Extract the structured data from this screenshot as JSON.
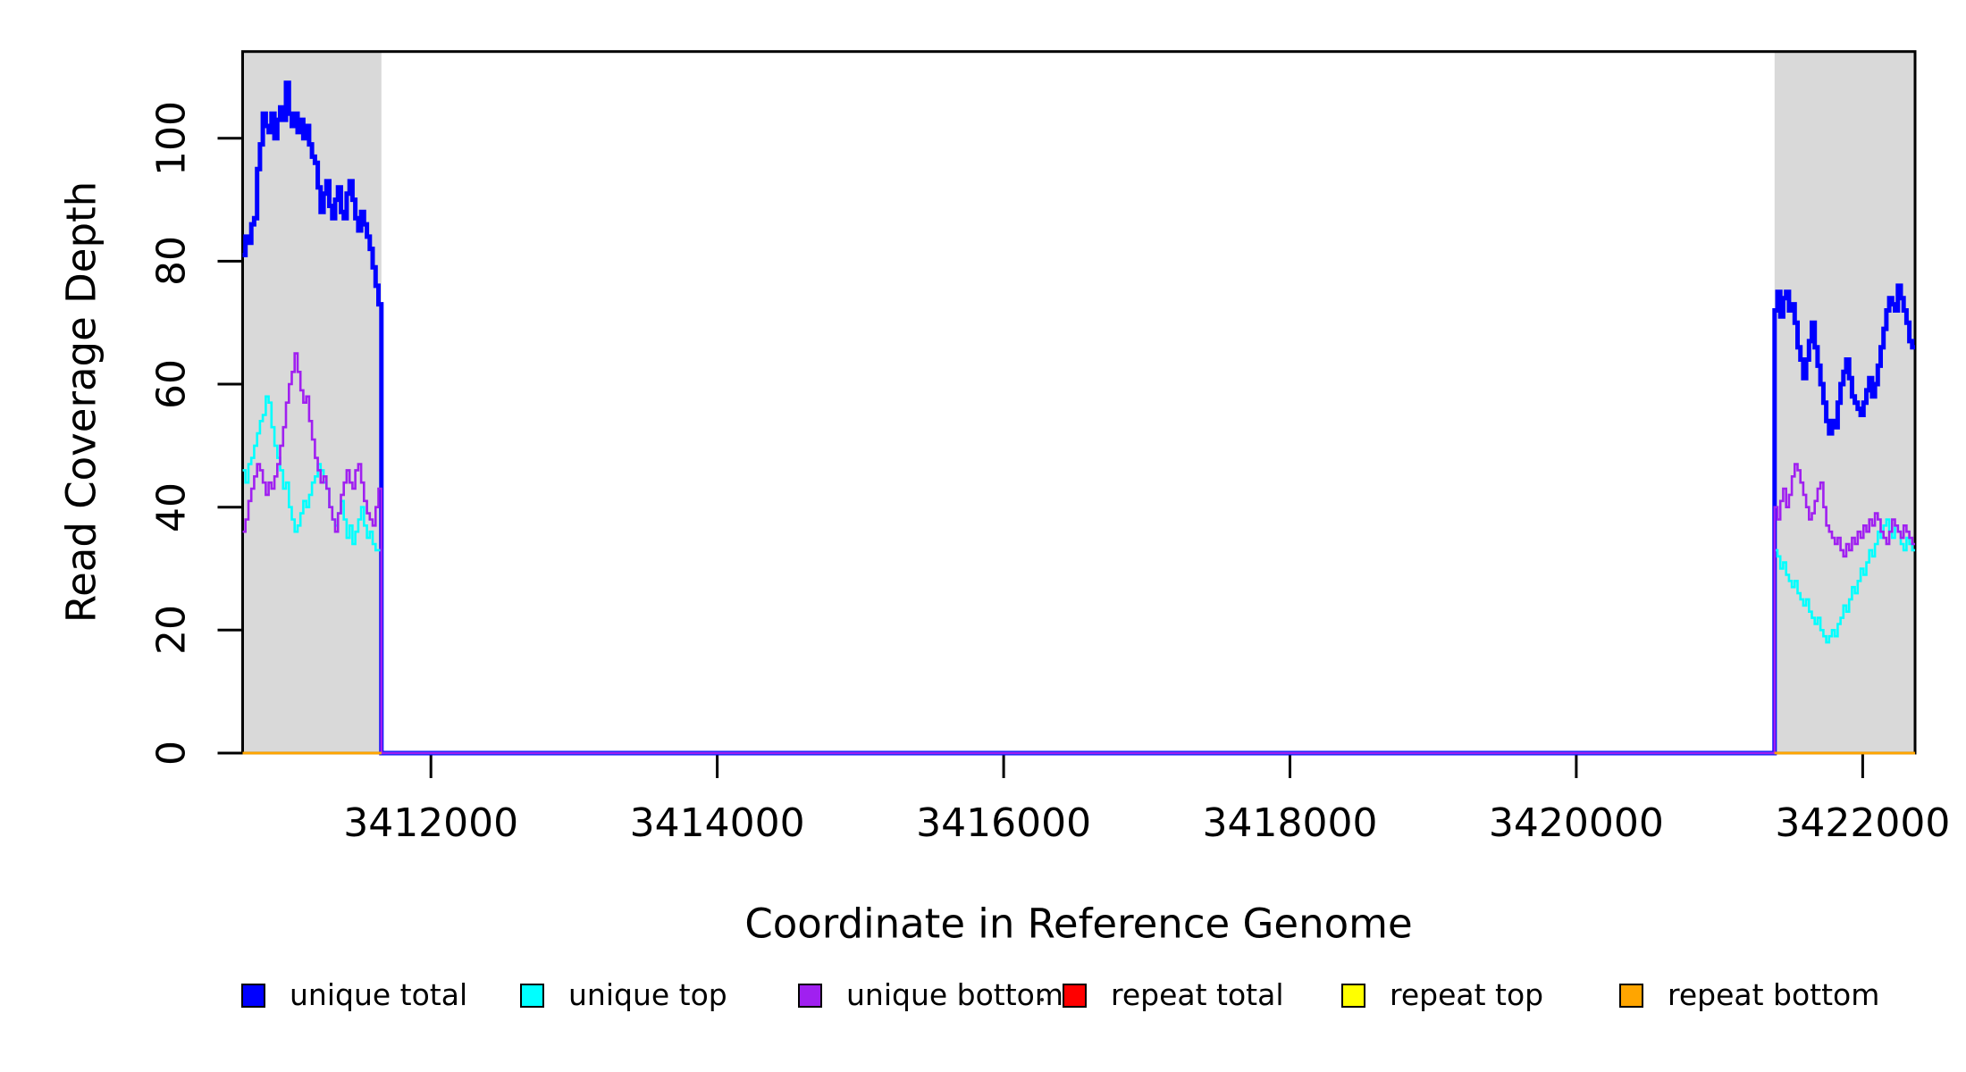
{
  "chart_data": {
    "type": "line",
    "line_style": "step",
    "title": "",
    "xlabel": "Coordinate in Reference Genome",
    "ylabel": "Read Coverage Depth",
    "xlim": [
      3410685,
      3422366
    ],
    "ylim": [
      0,
      114.1
    ],
    "x_ticks": [
      3412000,
      3414000,
      3416000,
      3418000,
      3420000,
      3422000
    ],
    "y_ticks": [
      0,
      20,
      40,
      60,
      80,
      100
    ],
    "grid": false,
    "legend_position": "bottom",
    "background_color": "#FFFFFF",
    "shaded_regions": [
      {
        "x0": 3410685,
        "x1": 3411654,
        "color": "#D9D9D9"
      },
      {
        "x0": 3421385,
        "x1": 3422366,
        "color": "#D9D9D9"
      }
    ],
    "regions": {
      "left": [
        3410685,
        3411654
      ],
      "right": [
        3421385,
        3422366
      ]
    },
    "series": [
      {
        "name": "unique total",
        "color": "#0000FF",
        "line_width": 5,
        "gap_value": 0,
        "left_values": [
          81,
          84,
          83,
          86,
          87,
          95,
          99,
          104,
          102,
          101,
          104,
          100,
          103,
          105,
          103,
          109,
          104,
          102,
          104,
          101,
          103,
          100,
          102,
          99,
          97,
          96,
          92,
          88,
          91,
          93,
          89,
          87,
          90,
          92,
          88,
          87,
          91,
          93,
          90,
          87,
          85,
          88,
          86,
          84,
          82,
          79,
          76,
          73
        ],
        "right_values": [
          72,
          75,
          71,
          74,
          75,
          72,
          73,
          70,
          66,
          64,
          61,
          64,
          67,
          70,
          66,
          63,
          60,
          57,
          54,
          52,
          54,
          53,
          57,
          60,
          62,
          64,
          61,
          58,
          57,
          56,
          55,
          57,
          59,
          61,
          58,
          60,
          63,
          66,
          69,
          72,
          74,
          73,
          72,
          76,
          74,
          72,
          70,
          67,
          66
        ]
      },
      {
        "name": "unique top",
        "color": "#00FFFF",
        "line_width": 2.6,
        "gap_value": 0,
        "left_values": [
          46,
          44,
          47,
          48,
          50,
          52,
          54,
          55,
          58,
          57,
          53,
          50,
          48,
          46,
          43,
          44,
          40,
          38,
          36,
          37,
          39,
          41,
          40,
          42,
          44,
          45,
          47,
          46,
          44,
          43,
          40,
          38,
          37,
          39,
          41,
          38,
          35,
          37,
          34,
          36,
          38,
          40,
          37,
          35,
          36,
          34,
          33,
          33
        ],
        "right_values": [
          33,
          32,
          30,
          31,
          29,
          28,
          27,
          28,
          26,
          25,
          24,
          25,
          23,
          22,
          21,
          22,
          20,
          19,
          18,
          19,
          20,
          19,
          21,
          22,
          24,
          23,
          25,
          27,
          26,
          28,
          30,
          29,
          31,
          33,
          32,
          34,
          36,
          35,
          37,
          38,
          36,
          35,
          37,
          36,
          34,
          33,
          35,
          34,
          33
        ]
      },
      {
        "name": "unique bottom",
        "color": "#A020F0",
        "line_width": 2.6,
        "gap_value": 0,
        "left_values": [
          36,
          38,
          41,
          43,
          45,
          47,
          46,
          44,
          42,
          44,
          43,
          45,
          47,
          50,
          53,
          57,
          60,
          62,
          65,
          62,
          59,
          57,
          58,
          54,
          51,
          48,
          46,
          44,
          45,
          43,
          40,
          38,
          36,
          39,
          42,
          44,
          46,
          44,
          43,
          46,
          47,
          44,
          41,
          39,
          38,
          37,
          40,
          43
        ],
        "right_values": [
          40,
          38,
          41,
          43,
          40,
          42,
          45,
          47,
          46,
          44,
          42,
          40,
          38,
          39,
          41,
          43,
          44,
          40,
          37,
          36,
          35,
          34,
          35,
          33,
          32,
          34,
          33,
          35,
          34,
          36,
          35,
          37,
          36,
          38,
          37,
          39,
          38,
          36,
          35,
          34,
          36,
          38,
          37,
          36,
          35,
          37,
          36,
          35,
          34
        ]
      },
      {
        "name": "repeat total",
        "color": "#FF0000",
        "line_width": 2.6,
        "left_constant": 0,
        "right_constant": 0
      },
      {
        "name": "repeat top",
        "color": "#FFFF00",
        "line_width": 2.6,
        "left_constant": 0,
        "right_constant": 0
      },
      {
        "name": "repeat bottom",
        "color": "#FFA500",
        "line_width": 2.6,
        "left_constant": 0,
        "right_constant": 0
      }
    ],
    "legend": [
      {
        "label": "unique total",
        "color": "#0000FF"
      },
      {
        "label": "unique top",
        "color": "#00FFFF"
      },
      {
        "label": "unique bottom",
        "color": "#A020F0"
      },
      {
        "label": "repeat total",
        "color": "#FF0000"
      },
      {
        "label": "repeat top",
        "color": "#FFFF00"
      },
      {
        "label": "repeat bottom",
        "color": "#FFA500"
      }
    ]
  }
}
